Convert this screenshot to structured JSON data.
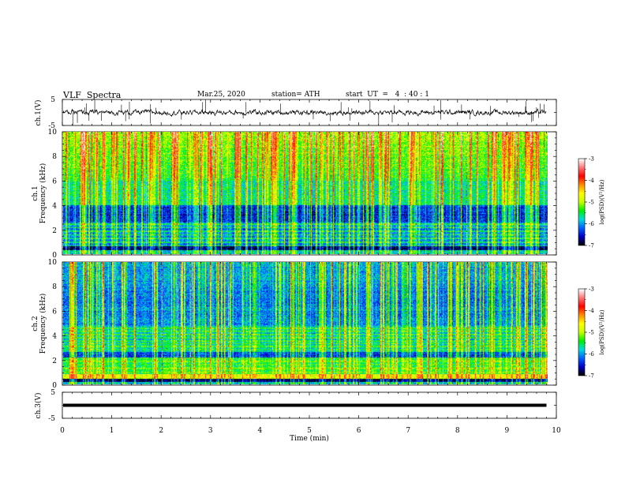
{
  "header": {
    "title": "VLF  Spectra",
    "date": "Mar.25, 2020",
    "station": "station= ATH",
    "start": "start  UT  =   4  : 40 : 1"
  },
  "chart_data": [
    {
      "type": "line",
      "panel": "ch1-waveform",
      "ylabel": "ch.1(V)",
      "ylim": [
        -5,
        5
      ],
      "yticks": [
        "5",
        "-5"
      ],
      "xlim": [
        0,
        10
      ],
      "series": [
        {
          "values_note": "",
          "values": []
        }
      ]
    },
    {
      "type": "heatmap",
      "panel": "ch1-spectrogram",
      "ylabel_top": "ch.1",
      "ylabel": "Frequency  (kHz)",
      "ylim": [
        0,
        10
      ],
      "yticks": [
        "10",
        "8",
        "6",
        "4",
        "2",
        "0"
      ],
      "xlim": [
        0,
        10
      ],
      "data_end_min": 9.8,
      "colorbar": {
        "label": "log(PSD)(V²/Hz)",
        "range": [
          -7,
          -3
        ],
        "ticks": [
          "-3",
          "-4",
          "-5",
          "-6",
          "-7"
        ]
      }
    },
    {
      "type": "heatmap",
      "panel": "ch2-spectrogram",
      "ylabel_top": "ch.2",
      "ylabel": "Frequency  (kHz)",
      "ylim": [
        0,
        10
      ],
      "yticks": [
        "10",
        "8",
        "6",
        "4",
        "2",
        "0"
      ],
      "xlim": [
        0,
        10
      ],
      "data_end_min": 9.8,
      "colorbar": {
        "label": "log(PSD)(V²/Hz)",
        "range": [
          -7,
          -3
        ],
        "ticks": [
          "-3",
          "-4",
          "-5",
          "-6",
          "-7"
        ]
      }
    },
    {
      "type": "line",
      "panel": "ch3-waveform",
      "ylabel": "ch.3(V)",
      "ylim": [
        -5,
        5
      ],
      "yticks": [
        "5",
        "-5"
      ],
      "xlim": [
        0,
        10
      ],
      "constant_level": 0
    }
  ],
  "xaxis": {
    "label": "Time  (min)",
    "ticks": [
      "0",
      "1",
      "2",
      "3",
      "4",
      "5",
      "6",
      "7",
      "8",
      "9",
      "10"
    ]
  },
  "colors": {
    "colormap": [
      "#000000",
      "#0000c8",
      "#0064ff",
      "#00dcdc",
      "#00f000",
      "#c8ff00",
      "#ffff00",
      "#ff8c00",
      "#ff0000",
      "#ff7878",
      "#ffffff"
    ]
  }
}
